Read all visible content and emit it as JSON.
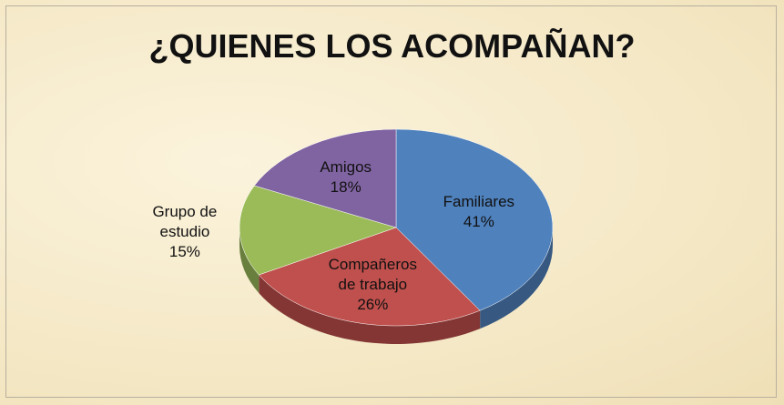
{
  "chart_data": {
    "type": "pie",
    "title": "¿QUIENES LOS ACOMPAÑAN?",
    "categories": [
      "Familiares",
      "Compañeros de trabajo",
      "Grupo de estudio",
      "Amigos"
    ],
    "values": [
      41,
      26,
      15,
      18
    ],
    "value_labels": [
      "41%",
      "26%",
      "15%",
      "18%"
    ],
    "colors": [
      "#4f81bd",
      "#c0504d",
      "#9bbb59",
      "#8064a2"
    ]
  }
}
